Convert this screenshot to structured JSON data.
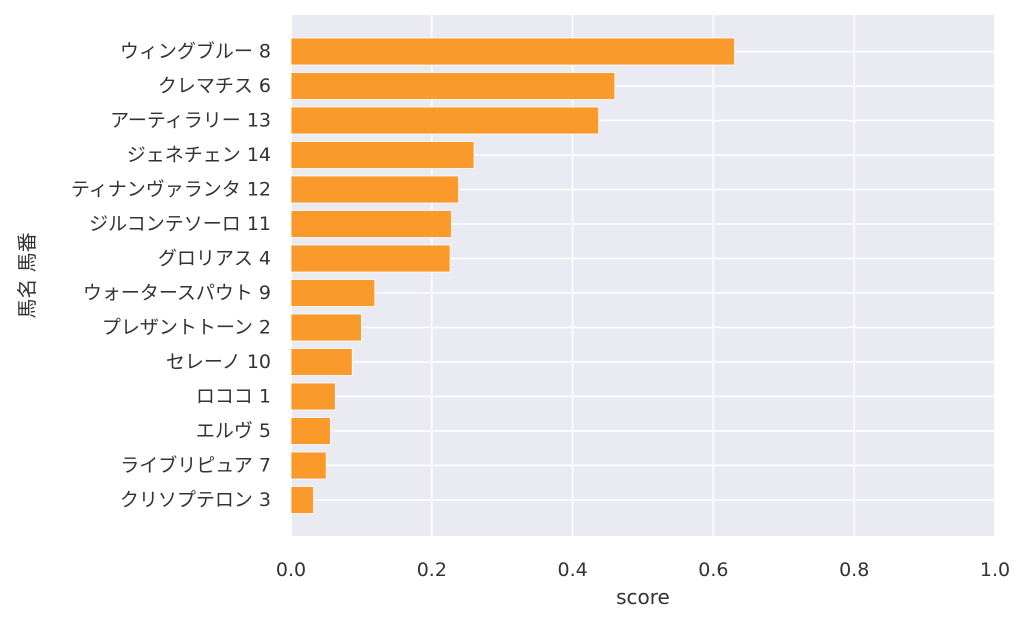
{
  "chart_data": {
    "type": "bar",
    "orientation": "horizontal",
    "categories": [
      "ウィングブルー 8",
      "クレマチス 6",
      "アーティラリー 13",
      "ジェネチェン 14",
      "ティナンヴァランタ 12",
      "ジルコンテソーロ 11",
      "グロリアス 4",
      "ウォータースパウト 9",
      "プレザントトーン 2",
      "セレーノ 10",
      "ロココ 1",
      "エルヴ 5",
      "ライブリピュア 7",
      "クリソプテロン 3"
    ],
    "values": [
      0.63,
      0.46,
      0.437,
      0.26,
      0.238,
      0.228,
      0.226,
      0.119,
      0.1,
      0.087,
      0.063,
      0.056,
      0.05,
      0.032
    ],
    "xlabel": "score",
    "ylabel": "馬名 馬番",
    "xlim": [
      0,
      1.0
    ],
    "xticks": [
      "0.0",
      "0.2",
      "0.4",
      "0.6",
      "0.8",
      "1.0"
    ],
    "grid": true,
    "colors": {
      "bar": "#f99a2b",
      "plot_background": "#eaeaf2",
      "grid": "#ffffff"
    }
  }
}
